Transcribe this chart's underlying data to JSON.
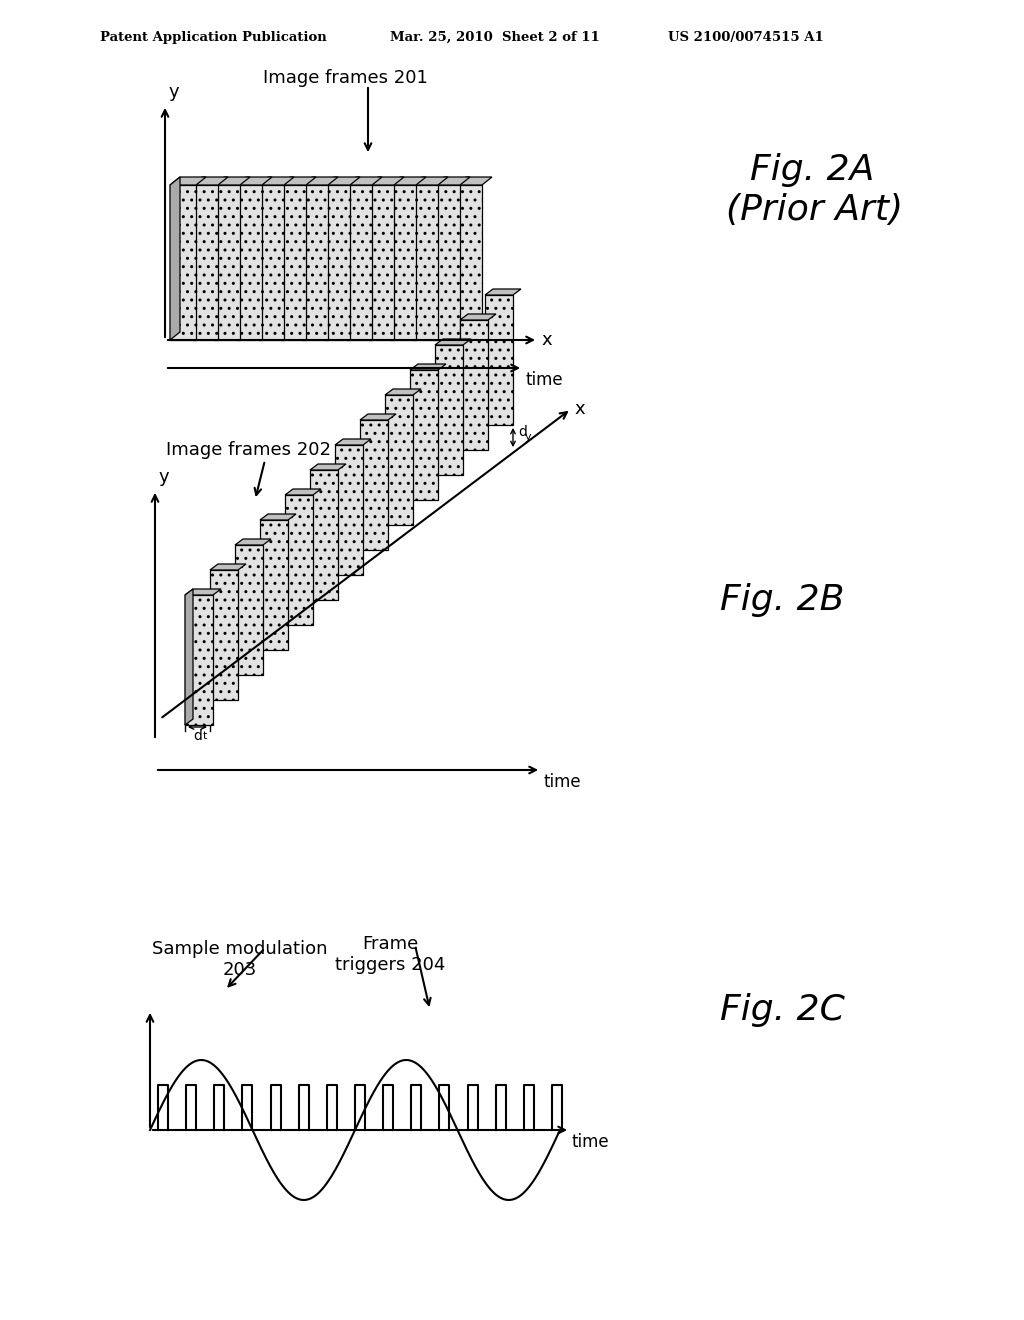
{
  "bg_color": "#ffffff",
  "header_left": "Patent Application Publication",
  "header_mid": "Mar. 25, 2010  Sheet 2 of 11",
  "header_right": "US 2100/0074515 A1",
  "fig2a_label_line1": "Fig. 2A",
  "fig2a_label_line2": "(Prior Art)",
  "fig2b_label": "Fig. 2B",
  "fig2c_label": "Fig. 2C",
  "fig2a_title": "Image frames 201",
  "fig2b_title": "Image frames 202",
  "fig2c_label1": "Sample modulation\n203",
  "fig2c_label2": "Frame\ntriggers 204"
}
